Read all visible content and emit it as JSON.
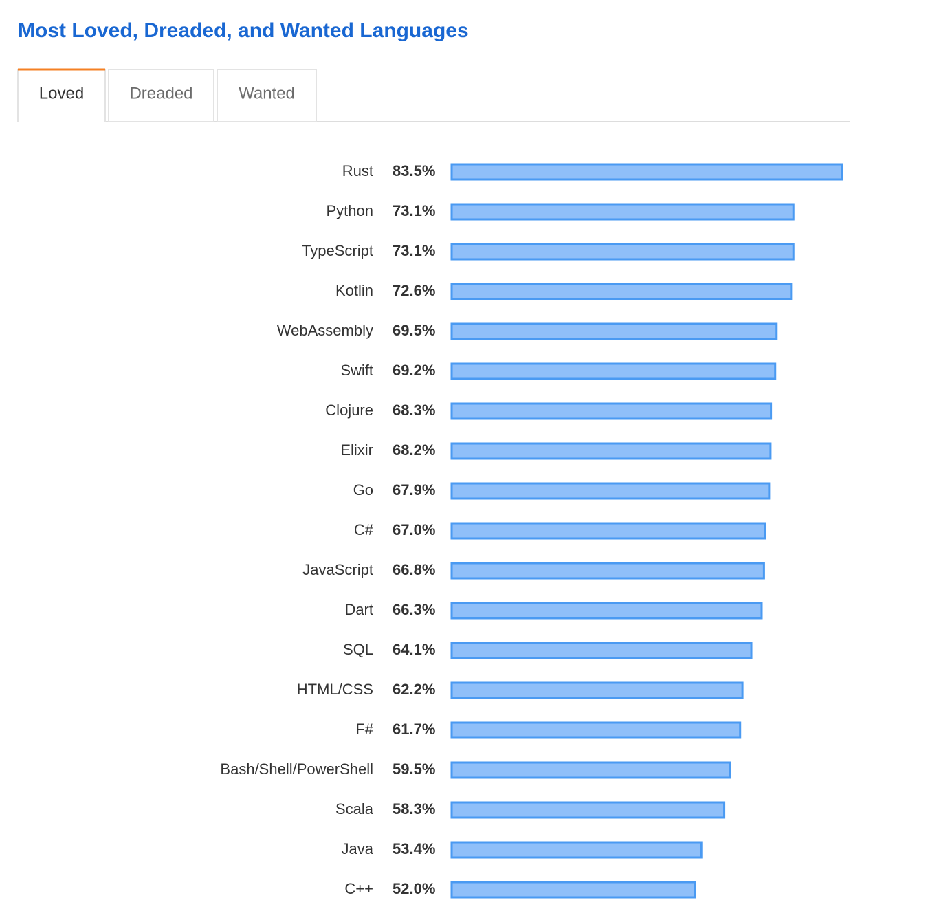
{
  "tabs": [
    {
      "label": "Loved",
      "active": true
    },
    {
      "label": "Dreaded",
      "active": false
    },
    {
      "label": "Wanted",
      "active": false
    }
  ],
  "chart_data": {
    "type": "bar",
    "orientation": "horizontal",
    "title": "Most Loved, Dreaded, and Wanted Languages",
    "categories": [
      "Rust",
      "Python",
      "TypeScript",
      "Kotlin",
      "WebAssembly",
      "Swift",
      "Clojure",
      "Elixir",
      "Go",
      "C#",
      "JavaScript",
      "Dart",
      "SQL",
      "HTML/CSS",
      "F#",
      "Bash/Shell/PowerShell",
      "Scala",
      "Java",
      "C++"
    ],
    "values": [
      83.5,
      73.1,
      73.1,
      72.6,
      69.5,
      69.2,
      68.3,
      68.2,
      67.9,
      67.0,
      66.8,
      66.3,
      64.1,
      62.2,
      61.7,
      59.5,
      58.3,
      53.4,
      52.0
    ],
    "value_labels": [
      "83.5%",
      "73.1%",
      "73.1%",
      "72.6%",
      "69.5%",
      "69.2%",
      "68.3%",
      "68.2%",
      "67.9%",
      "67.0%",
      "66.8%",
      "66.3%",
      "64.1%",
      "62.2%",
      "61.7%",
      "59.5%",
      "58.3%",
      "53.4%",
      "52.0%"
    ],
    "color": "#8fbff9",
    "edge_color": "#4a9af2"
  }
}
